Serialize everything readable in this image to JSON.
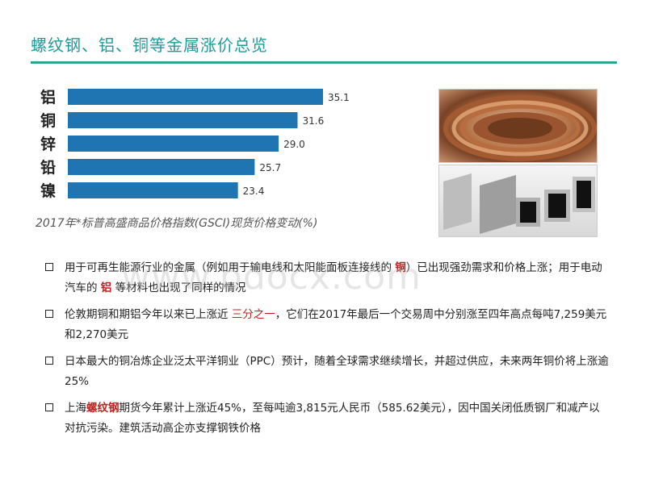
{
  "title": "螺纹钢、铝、铜等金属涨价总览",
  "chart_caption": "2017年*标普高盛商品价格指数(GSCI)现货价格变动(%)",
  "chart_data": {
    "type": "bar",
    "orientation": "horizontal",
    "categories": [
      "铝",
      "铜",
      "锌",
      "铅",
      "镍"
    ],
    "values": [
      35.1,
      31.6,
      29.0,
      25.7,
      23.4
    ],
    "value_labels": [
      "35.1",
      "31.6",
      "29.0",
      "25.7",
      "23.4"
    ],
    "color": "#1f74b2",
    "title": "",
    "xlabel": "",
    "ylabel": ""
  },
  "bullets": [
    {
      "parts": [
        {
          "text": "用于可再生能源行业的金属（例如用于输电线和太阳能面板连接线的 ",
          "style": "normal"
        },
        {
          "text": "铜",
          "style": "hl"
        },
        {
          "text": "）已出现强劲需求和价格上涨；用于电动汽车的 ",
          "style": "normal"
        },
        {
          "text": "铝",
          "style": "hl"
        },
        {
          "text": " 等材料也出现了同样的情况",
          "style": "normal"
        }
      ]
    },
    {
      "parts": [
        {
          "text": "伦敦期铜和期铝今年以来已上涨近 ",
          "style": "normal"
        },
        {
          "text": "三分之一",
          "style": "hl2"
        },
        {
          "text": "，它们在2017年最后一个交易周中分别涨至四年高点每吨7,259美元和2,270美元",
          "style": "normal"
        }
      ]
    },
    {
      "parts": [
        {
          "text": "日本最大的铜冶炼企业泛太平洋铜业（PPC）预计，随着全球需求继续增长，并超过供应，未来两年铜价将上涨逾25%",
          "style": "normal"
        }
      ]
    },
    {
      "parts": [
        {
          "text": "上海",
          "style": "normal"
        },
        {
          "text": "螺纹钢",
          "style": "hl"
        },
        {
          "text": "期货今年累计上涨近45%，至每吨逾3,815元人民币（585.62美元），因中国关闭低质钢厂和减产以对抗污染。建筑活动高企亦支撑钢铁价格",
          "style": "normal"
        }
      ]
    }
  ],
  "watermark": "www.bdocx.com",
  "images": [
    "copper-coil-photo",
    "steel-square-tubes-photo"
  ]
}
